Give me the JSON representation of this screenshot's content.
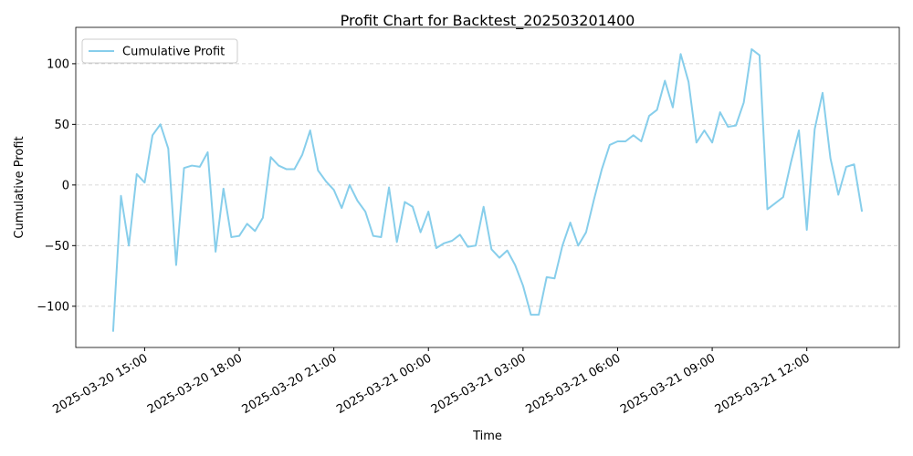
{
  "chart_data": {
    "type": "line",
    "title": "Profit Chart for Backtest_202503201400",
    "x_label": "Time",
    "y_label": "Cumulative Profit",
    "legend": "upper left",
    "grid": "y",
    "xlim": [
      "2025-03-20 12:49",
      "2025-03-21 14:56"
    ],
    "xticks": [
      "2025-03-20 15:00",
      "2025-03-20 18:00",
      "2025-03-20 21:00",
      "2025-03-21 00:00",
      "2025-03-21 03:00",
      "2025-03-21 06:00",
      "2025-03-21 09:00",
      "2025-03-21 12:00"
    ],
    "ylim": [
      -134,
      130
    ],
    "yticks": [
      {
        "value": -100,
        "label": "−100"
      },
      {
        "value": -50,
        "label": "−50"
      },
      0,
      50,
      100
    ],
    "x": [
      "2025-03-20 14:00",
      "2025-03-20 14:15",
      "2025-03-20 14:30",
      "2025-03-20 14:45",
      "2025-03-20 15:00",
      "2025-03-20 15:15",
      "2025-03-20 15:30",
      "2025-03-20 15:45",
      "2025-03-20 16:00",
      "2025-03-20 16:15",
      "2025-03-20 16:30",
      "2025-03-20 16:45",
      "2025-03-20 17:00",
      "2025-03-20 17:15",
      "2025-03-20 17:30",
      "2025-03-20 17:45",
      "2025-03-20 18:00",
      "2025-03-20 18:15",
      "2025-03-20 18:30",
      "2025-03-20 18:45",
      "2025-03-20 19:00",
      "2025-03-20 19:15",
      "2025-03-20 19:30",
      "2025-03-20 19:45",
      "2025-03-20 20:00",
      "2025-03-20 20:15",
      "2025-03-20 20:30",
      "2025-03-20 20:45",
      "2025-03-20 21:00",
      "2025-03-20 21:15",
      "2025-03-20 21:30",
      "2025-03-20 21:45",
      "2025-03-20 22:00",
      "2025-03-20 22:15",
      "2025-03-20 22:30",
      "2025-03-20 22:45",
      "2025-03-20 23:00",
      "2025-03-20 23:15",
      "2025-03-20 23:30",
      "2025-03-20 23:45",
      "2025-03-21 00:00",
      "2025-03-21 00:15",
      "2025-03-21 00:30",
      "2025-03-21 00:45",
      "2025-03-21 01:00",
      "2025-03-21 01:15",
      "2025-03-21 01:30",
      "2025-03-21 01:45",
      "2025-03-21 02:00",
      "2025-03-21 02:15",
      "2025-03-21 02:30",
      "2025-03-21 02:45",
      "2025-03-21 03:00",
      "2025-03-21 03:15",
      "2025-03-21 03:30",
      "2025-03-21 03:45",
      "2025-03-21 04:00",
      "2025-03-21 04:15",
      "2025-03-21 04:30",
      "2025-03-21 04:45",
      "2025-03-21 05:00",
      "2025-03-21 05:15",
      "2025-03-21 05:30",
      "2025-03-21 05:45",
      "2025-03-21 06:00",
      "2025-03-21 06:15",
      "2025-03-21 06:30",
      "2025-03-21 06:45",
      "2025-03-21 07:00",
      "2025-03-21 07:15",
      "2025-03-21 07:30",
      "2025-03-21 07:45",
      "2025-03-21 08:00",
      "2025-03-21 08:15",
      "2025-03-21 08:30",
      "2025-03-21 08:45",
      "2025-03-21 09:00",
      "2025-03-21 09:15",
      "2025-03-21 09:30",
      "2025-03-21 09:45",
      "2025-03-21 10:00",
      "2025-03-21 10:15",
      "2025-03-21 10:30",
      "2025-03-21 10:45",
      "2025-03-21 11:00",
      "2025-03-21 11:15",
      "2025-03-21 11:30",
      "2025-03-21 11:45",
      "2025-03-21 12:00",
      "2025-03-21 12:15",
      "2025-03-21 12:30",
      "2025-03-21 12:45",
      "2025-03-21 13:00",
      "2025-03-21 13:15",
      "2025-03-21 13:30",
      "2025-03-21 13:45"
    ],
    "series": [
      {
        "name": "Cumulative Profit",
        "color": "#87ceeb",
        "values": [
          -121,
          -9,
          -50,
          9,
          2,
          41,
          50,
          30,
          -66,
          14,
          16,
          15,
          27,
          -55,
          -3,
          -43,
          -42,
          -32,
          -38,
          -27,
          23,
          16,
          13,
          13,
          25,
          45,
          12,
          3,
          -4,
          -19,
          0,
          -13,
          -22,
          -42,
          -43,
          -2,
          -47,
          -14,
          -18,
          -39,
          -22,
          -52,
          -48,
          -46,
          -41,
          -51,
          -50,
          -18,
          -53,
          -60,
          -54,
          -66,
          -83,
          -107,
          -107,
          -76,
          -77,
          -50,
          -31,
          -50,
          -39,
          -12,
          13,
          33,
          36,
          36,
          41,
          36,
          57,
          62,
          86,
          64,
          108,
          85,
          35,
          45,
          35,
          60,
          48,
          49,
          68,
          112,
          107,
          -20,
          -15,
          -10,
          19,
          45,
          -37,
          46,
          76,
          22,
          -8,
          15,
          17,
          -22
        ]
      }
    ]
  }
}
